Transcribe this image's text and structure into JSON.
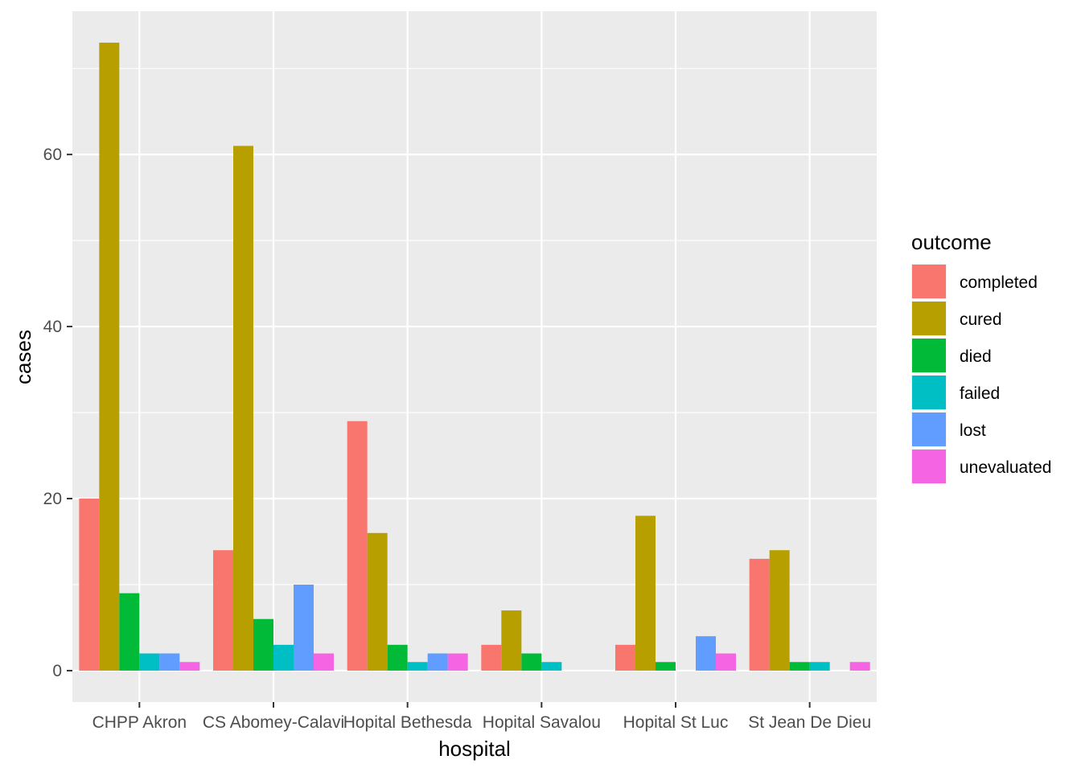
{
  "chart_data": {
    "type": "bar",
    "bar_mode": "dodge",
    "title": "",
    "xlabel": "hospital",
    "ylabel": "cases",
    "categories": [
      "CHPP Akron",
      "CS Abomey-Calavi",
      "Hopital Bethesda",
      "Hopital Savalou",
      "Hopital St Luc",
      "St Jean De Dieu"
    ],
    "y_ticks": [
      0,
      20,
      40,
      60
    ],
    "ylim": [
      -3.65,
      76.65
    ],
    "grid": true,
    "panel_background": "#EBEBEB",
    "gridline_color": "#FFFFFF",
    "legend": {
      "title": "outcome",
      "placement": "right"
    },
    "series": [
      {
        "name": "completed",
        "color": "#F8766D",
        "values": [
          20,
          14,
          29,
          3,
          3,
          13
        ]
      },
      {
        "name": "cured",
        "color": "#B79F00",
        "values": [
          73,
          61,
          16,
          7,
          18,
          14
        ]
      },
      {
        "name": "died",
        "color": "#00BA38",
        "values": [
          9,
          6,
          3,
          2,
          1,
          1
        ]
      },
      {
        "name": "failed",
        "color": "#00BFC4",
        "values": [
          2,
          3,
          1,
          1,
          0,
          1
        ]
      },
      {
        "name": "lost",
        "color": "#619CFF",
        "values": [
          2,
          10,
          2,
          0,
          4,
          0
        ]
      },
      {
        "name": "unevaluated",
        "color": "#F564E3",
        "values": [
          1,
          2,
          2,
          0,
          2,
          1
        ]
      }
    ]
  }
}
